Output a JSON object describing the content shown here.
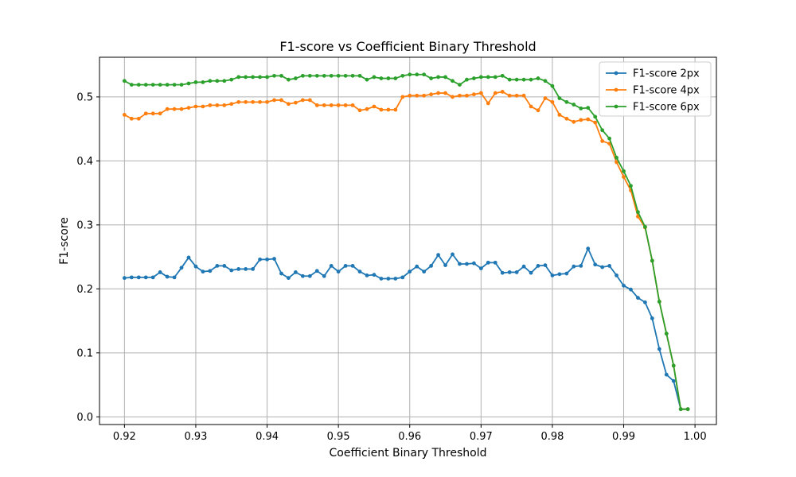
{
  "chart_data": {
    "type": "line",
    "title": "F1-score vs Coefficient Binary Threshold",
    "xlabel": "Coefficient Binary Threshold",
    "ylabel": "F1-score",
    "xlim": [
      0.9165,
      1.003
    ],
    "ylim": [
      -0.012,
      0.562
    ],
    "xticks": [
      0.92,
      0.93,
      0.94,
      0.95,
      0.96,
      0.97,
      0.98,
      0.99,
      1.0
    ],
    "xtick_labels": [
      "0.92",
      "0.93",
      "0.94",
      "0.95",
      "0.96",
      "0.97",
      "0.98",
      "0.99",
      "1.00"
    ],
    "yticks": [
      0.0,
      0.1,
      0.2,
      0.3,
      0.4,
      0.5
    ],
    "ytick_labels": [
      "0.0",
      "0.1",
      "0.2",
      "0.3",
      "0.4",
      "0.5"
    ],
    "grid": true,
    "legend_position": "top-right",
    "series": [
      {
        "name": "F1-score 2px",
        "color": "#1f77b4",
        "x": [
          0.92,
          0.921,
          0.922,
          0.923,
          0.924,
          0.925,
          0.926,
          0.927,
          0.928,
          0.929,
          0.93,
          0.931,
          0.932,
          0.933,
          0.934,
          0.935,
          0.936,
          0.937,
          0.938,
          0.939,
          0.94,
          0.941,
          0.942,
          0.943,
          0.944,
          0.945,
          0.946,
          0.947,
          0.948,
          0.949,
          0.95,
          0.951,
          0.952,
          0.953,
          0.954,
          0.955,
          0.956,
          0.957,
          0.958,
          0.959,
          0.96,
          0.961,
          0.962,
          0.963,
          0.964,
          0.965,
          0.966,
          0.967,
          0.968,
          0.969,
          0.97,
          0.971,
          0.972,
          0.973,
          0.974,
          0.975,
          0.976,
          0.977,
          0.978,
          0.979,
          0.98,
          0.981,
          0.982,
          0.983,
          0.984,
          0.985,
          0.986,
          0.987,
          0.988,
          0.989,
          0.99,
          0.991,
          0.992,
          0.993,
          0.994,
          0.995,
          0.996,
          0.997,
          0.998,
          0.999
        ],
        "y": [
          0.217,
          0.218,
          0.218,
          0.218,
          0.218,
          0.226,
          0.219,
          0.218,
          0.233,
          0.249,
          0.235,
          0.227,
          0.228,
          0.236,
          0.236,
          0.229,
          0.231,
          0.231,
          0.231,
          0.246,
          0.246,
          0.247,
          0.224,
          0.217,
          0.226,
          0.22,
          0.22,
          0.228,
          0.22,
          0.236,
          0.227,
          0.236,
          0.236,
          0.227,
          0.221,
          0.222,
          0.216,
          0.216,
          0.216,
          0.218,
          0.227,
          0.235,
          0.227,
          0.236,
          0.253,
          0.237,
          0.254,
          0.239,
          0.239,
          0.24,
          0.232,
          0.241,
          0.241,
          0.225,
          0.226,
          0.226,
          0.235,
          0.225,
          0.236,
          0.237,
          0.221,
          0.223,
          0.224,
          0.235,
          0.236,
          0.263,
          0.238,
          0.234,
          0.236,
          0.221,
          0.205,
          0.199,
          0.186,
          0.179,
          0.154,
          0.106,
          0.066,
          0.056,
          0.012,
          0.012
        ]
      },
      {
        "name": "F1-score 4px",
        "color": "#ff7f0e",
        "x": [
          0.92,
          0.921,
          0.922,
          0.923,
          0.924,
          0.925,
          0.926,
          0.927,
          0.928,
          0.929,
          0.93,
          0.931,
          0.932,
          0.933,
          0.934,
          0.935,
          0.936,
          0.937,
          0.938,
          0.939,
          0.94,
          0.941,
          0.942,
          0.943,
          0.944,
          0.945,
          0.946,
          0.947,
          0.948,
          0.949,
          0.95,
          0.951,
          0.952,
          0.953,
          0.954,
          0.955,
          0.956,
          0.957,
          0.958,
          0.959,
          0.96,
          0.961,
          0.962,
          0.963,
          0.964,
          0.965,
          0.966,
          0.967,
          0.968,
          0.969,
          0.97,
          0.971,
          0.972,
          0.973,
          0.974,
          0.975,
          0.976,
          0.977,
          0.978,
          0.979,
          0.98,
          0.981,
          0.982,
          0.983,
          0.984,
          0.985,
          0.986,
          0.987,
          0.988,
          0.989,
          0.99,
          0.991,
          0.992,
          0.993,
          0.994,
          0.995,
          0.996,
          0.997,
          0.998,
          0.999
        ],
        "y": [
          0.472,
          0.466,
          0.466,
          0.474,
          0.474,
          0.474,
          0.481,
          0.481,
          0.481,
          0.483,
          0.485,
          0.485,
          0.487,
          0.487,
          0.487,
          0.489,
          0.492,
          0.492,
          0.492,
          0.492,
          0.492,
          0.495,
          0.495,
          0.489,
          0.491,
          0.495,
          0.495,
          0.487,
          0.487,
          0.487,
          0.487,
          0.487,
          0.487,
          0.479,
          0.481,
          0.485,
          0.48,
          0.48,
          0.48,
          0.5,
          0.502,
          0.502,
          0.502,
          0.504,
          0.506,
          0.506,
          0.5,
          0.502,
          0.502,
          0.504,
          0.506,
          0.49,
          0.506,
          0.508,
          0.502,
          0.502,
          0.502,
          0.485,
          0.479,
          0.498,
          0.492,
          0.472,
          0.466,
          0.461,
          0.464,
          0.465,
          0.46,
          0.431,
          0.427,
          0.398,
          0.375,
          0.354,
          0.313,
          0.296,
          0.244,
          0.18,
          0.13,
          0.08,
          0.012,
          0.012
        ]
      },
      {
        "name": "F1-score 6px",
        "color": "#2ca02c",
        "x": [
          0.92,
          0.921,
          0.922,
          0.923,
          0.924,
          0.925,
          0.926,
          0.927,
          0.928,
          0.929,
          0.93,
          0.931,
          0.932,
          0.933,
          0.934,
          0.935,
          0.936,
          0.937,
          0.938,
          0.939,
          0.94,
          0.941,
          0.942,
          0.943,
          0.944,
          0.945,
          0.946,
          0.947,
          0.948,
          0.949,
          0.95,
          0.951,
          0.952,
          0.953,
          0.954,
          0.955,
          0.956,
          0.957,
          0.958,
          0.959,
          0.96,
          0.961,
          0.962,
          0.963,
          0.964,
          0.965,
          0.966,
          0.967,
          0.968,
          0.969,
          0.97,
          0.971,
          0.972,
          0.973,
          0.974,
          0.975,
          0.976,
          0.977,
          0.978,
          0.979,
          0.98,
          0.981,
          0.982,
          0.983,
          0.984,
          0.985,
          0.986,
          0.987,
          0.988,
          0.989,
          0.99,
          0.991,
          0.992,
          0.993,
          0.994,
          0.995,
          0.996,
          0.997,
          0.998,
          0.999
        ],
        "y": [
          0.525,
          0.519,
          0.519,
          0.519,
          0.519,
          0.519,
          0.519,
          0.519,
          0.519,
          0.521,
          0.523,
          0.523,
          0.525,
          0.525,
          0.525,
          0.527,
          0.531,
          0.531,
          0.531,
          0.531,
          0.531,
          0.533,
          0.533,
          0.527,
          0.529,
          0.533,
          0.533,
          0.533,
          0.533,
          0.533,
          0.533,
          0.533,
          0.533,
          0.533,
          0.527,
          0.531,
          0.529,
          0.529,
          0.529,
          0.533,
          0.535,
          0.535,
          0.535,
          0.529,
          0.531,
          0.531,
          0.525,
          0.519,
          0.527,
          0.529,
          0.531,
          0.531,
          0.531,
          0.533,
          0.527,
          0.527,
          0.527,
          0.527,
          0.529,
          0.525,
          0.517,
          0.498,
          0.492,
          0.488,
          0.482,
          0.483,
          0.469,
          0.448,
          0.435,
          0.405,
          0.384,
          0.361,
          0.32,
          0.297,
          0.244,
          0.18,
          0.13,
          0.08,
          0.012,
          0.012
        ]
      }
    ]
  }
}
